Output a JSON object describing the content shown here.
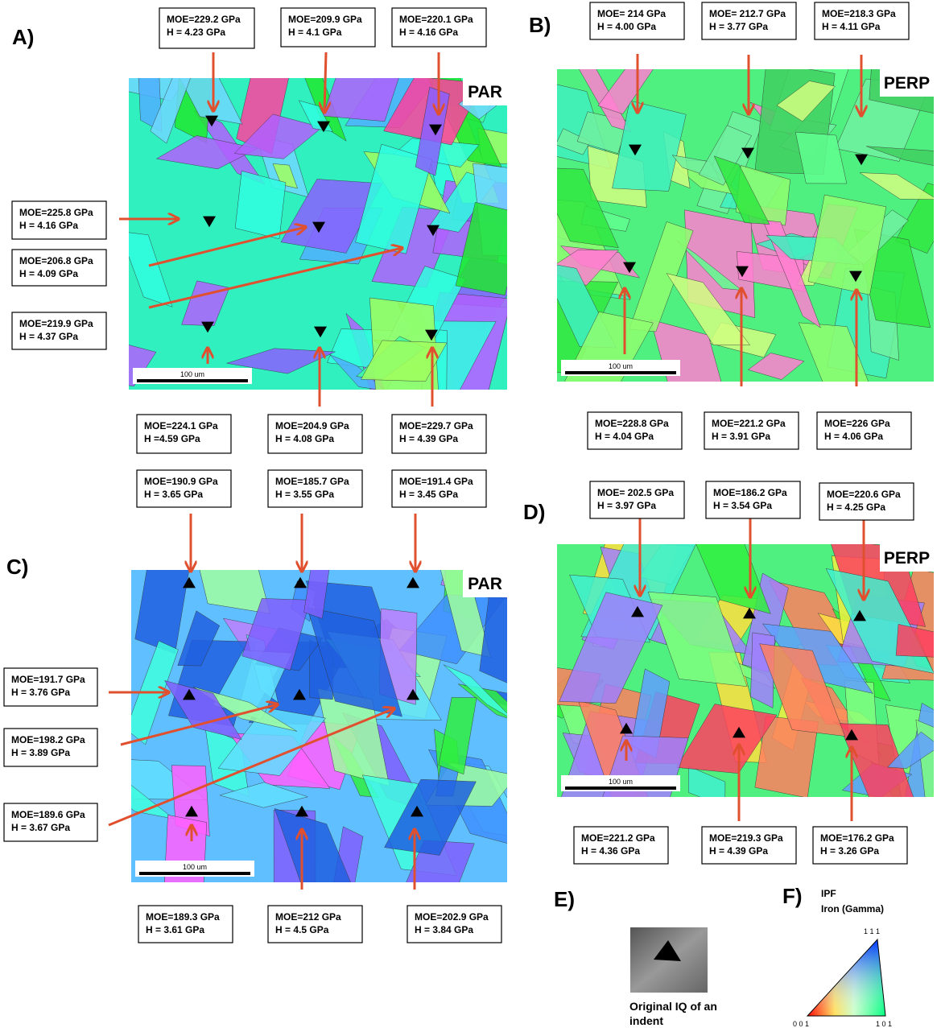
{
  "panels": [
    {
      "label": "A)",
      "orientation": "PAR",
      "scale_bar": "100 um",
      "indents": [
        {
          "moe": "MOE=229.2 GPa",
          "h": "H = 4.23 GPa"
        },
        {
          "moe": "MOE=209.9 GPa",
          "h": "H = 4.1 GPa"
        },
        {
          "moe": "MOE=220.1 GPa",
          "h": "H = 4.16 GPa"
        },
        {
          "moe": "MOE=225.8 GPa",
          "h": "H = 4.16 GPa"
        },
        {
          "moe": "MOE=206.8 GPa",
          "h": "H = 4.09 GPa"
        },
        {
          "moe": "MOE=219.9 GPa",
          "h": "H = 4.37 GPa"
        },
        {
          "moe": "MOE=224.1 GPa",
          "h": "H =4.59 GPa"
        },
        {
          "moe": "MOE=204.9 GPa",
          "h": "H = 4.08 GPa"
        },
        {
          "moe": "MOE=229.7 GPa",
          "h": "H = 4.39 GPa"
        }
      ]
    },
    {
      "label": "B)",
      "orientation": "PERP",
      "scale_bar": "100 um",
      "indents": [
        {
          "moe": "MOE= 214 GPa",
          "h": "H = 4.00 GPa"
        },
        {
          "moe": "MOE= 212.7 GPa",
          "h": "H = 3.77 GPa"
        },
        {
          "moe": "MOE=218.3 GPa",
          "h": "H = 4.11 GPa"
        },
        {
          "moe": "MOE=228.8 GPa",
          "h": "H = 4.04 GPa"
        },
        {
          "moe": "MOE=221.2 GPa",
          "h": "H = 3.91 GPa"
        },
        {
          "moe": "MOE=226 GPa",
          "h": "H = 4.06 GPa"
        }
      ]
    },
    {
      "label": "C)",
      "orientation": "PAR",
      "scale_bar": "100 um",
      "indents": [
        {
          "moe": "MOE=190.9 GPa",
          "h": "H = 3.65 GPa"
        },
        {
          "moe": "MOE=185.7 GPa",
          "h": "H = 3.55 GPa"
        },
        {
          "moe": "MOE=191.4 GPa",
          "h": "H = 3.45 GPa"
        },
        {
          "moe": "MOE=191.7 GPa",
          "h": "H = 3.76 GPa"
        },
        {
          "moe": "MOE=198.2 GPa",
          "h": "H = 3.89 GPa"
        },
        {
          "moe": "MOE=189.6 GPa",
          "h": "H = 3.67 GPa"
        },
        {
          "moe": "MOE=189.3 GPa",
          "h": "H = 3.61 GPa"
        },
        {
          "moe": "MOE=212 GPa",
          "h": "H = 4.5 GPa"
        },
        {
          "moe": "MOE=202.9 GPa",
          "h": "H = 3.84 GPa"
        }
      ]
    },
    {
      "label": "D)",
      "orientation": "PERP",
      "scale_bar": "100 um",
      "indents": [
        {
          "moe": "MOE= 202.5 GPa",
          "h": "H = 3.97 GPa"
        },
        {
          "moe": "MOE=186.2 GPa",
          "h": "H = 3.54 GPa"
        },
        {
          "moe": "MOE=220.6 GPa",
          "h": "H = 4.25 GPa"
        },
        {
          "moe": "MOE=221.2 GPa",
          "h": "H = 4.36 GPa"
        },
        {
          "moe": "MOE=219.3 GPa",
          "h": "H = 4.39 GPa"
        },
        {
          "moe": "MOE=176.2 GPa",
          "h": "H = 3.26 GPa"
        }
      ]
    }
  ],
  "panel_e": {
    "label": "E)",
    "caption": [
      "Original IQ of an",
      "indent"
    ]
  },
  "panel_f": {
    "label": "F)",
    "title": [
      "IPF",
      "Iron (Gamma)"
    ],
    "corners": [
      "1 1 1",
      "0 0 1",
      "1 0 1"
    ]
  }
}
